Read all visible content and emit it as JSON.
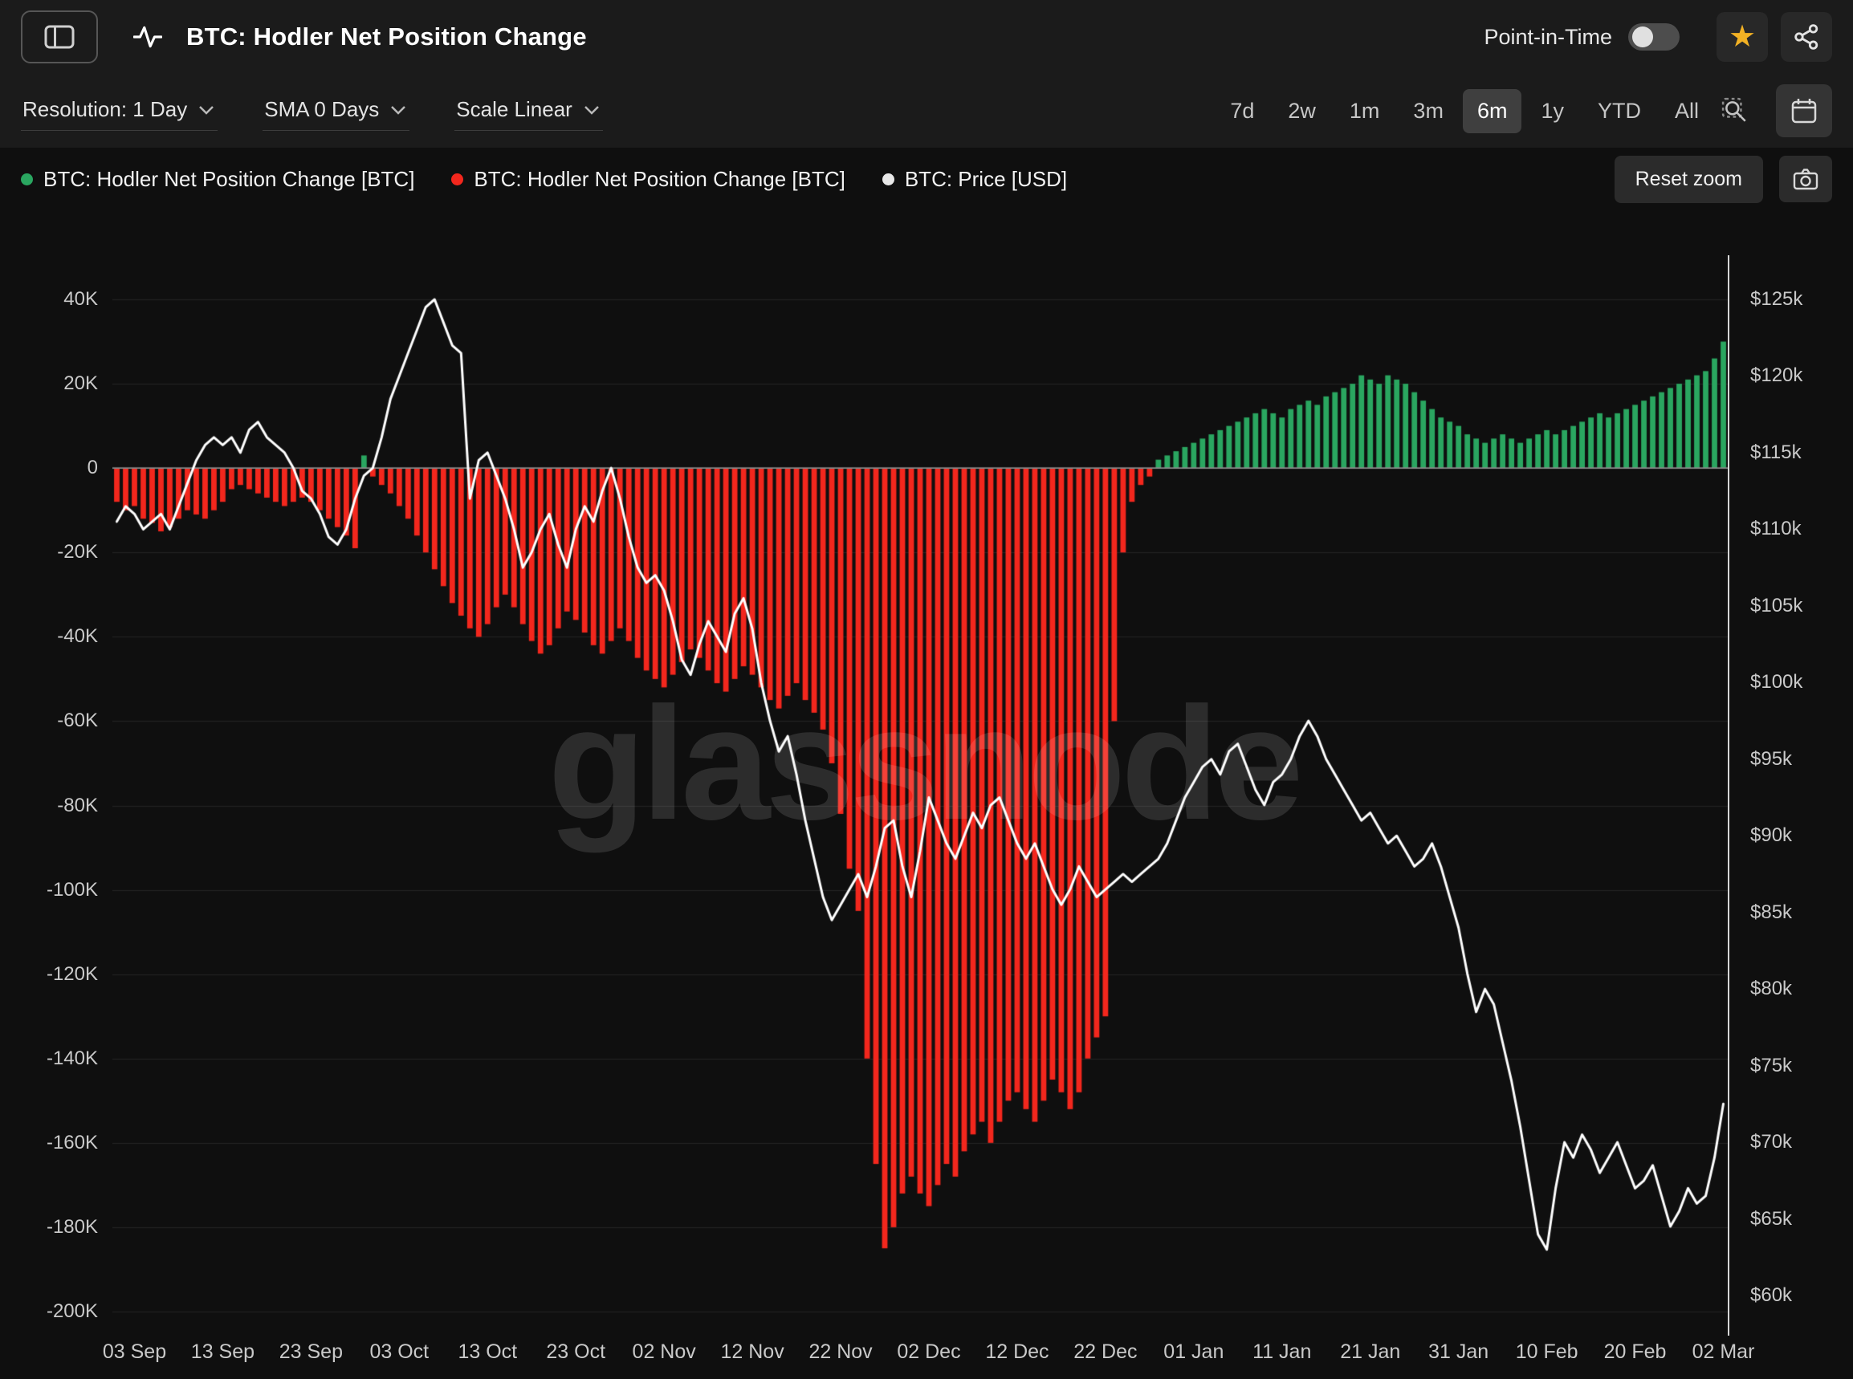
{
  "header": {
    "title": "BTC: Hodler Net Position Change",
    "point_in_time_label": "Point-in-Time",
    "point_in_time_enabled": false
  },
  "controls": {
    "dropdowns": [
      {
        "text": "Resolution: 1 Day"
      },
      {
        "text": "SMA 0 Days"
      },
      {
        "text": "Scale Linear"
      }
    ],
    "ranges": [
      "7d",
      "2w",
      "1m",
      "3m",
      "6m",
      "1y",
      "YTD",
      "All"
    ],
    "selected_range": "6m"
  },
  "legend": {
    "items": [
      {
        "label": "BTC: Hodler Net Position Change [BTC]",
        "color": "#2aa660"
      },
      {
        "label": "BTC: Hodler Net Position Change [BTC]",
        "color": "#f3271d"
      },
      {
        "label": "BTC: Price [USD]",
        "color": "#e8e8e8"
      }
    ],
    "reset_zoom_label": "Reset zoom"
  },
  "watermark": "glassnode",
  "colors": {
    "positive_bar": "#2aa660",
    "negative_bar": "#f3271d",
    "price_line": "#ffffff",
    "selected_range_bg": "#3f3f3f",
    "star": "#f2b124"
  },
  "chart_data": {
    "type": "combo",
    "x_unit": "daily values, 01 Sep through 02 Mar",
    "x_tick_labels": [
      "03 Sep",
      "13 Sep",
      "23 Sep",
      "03 Oct",
      "13 Oct",
      "23 Oct",
      "02 Nov",
      "12 Nov",
      "22 Nov",
      "02 Dec",
      "12 Dec",
      "22 Dec",
      "01 Jan",
      "11 Jan",
      "21 Jan",
      "31 Jan",
      "10 Feb",
      "20 Feb",
      "02 Mar"
    ],
    "x_tick_indices": [
      2,
      12,
      22,
      32,
      42,
      52,
      62,
      72,
      82,
      92,
      102,
      112,
      122,
      132,
      142,
      152,
      162,
      172,
      182
    ],
    "left_axis": {
      "tick_labels": [
        "40K",
        "20K",
        "0",
        "-20K",
        "-40K",
        "-60K",
        "-80K",
        "-100K",
        "-120K",
        "-140K",
        "-160K",
        "-180K",
        "-200K"
      ],
      "tick_values": [
        40,
        20,
        0,
        -20,
        -40,
        -60,
        -80,
        -100,
        -120,
        -140,
        -160,
        -180,
        -200
      ],
      "unit": "thousand BTC"
    },
    "right_axis": {
      "tick_labels": [
        "$125k",
        "$120k",
        "$115k",
        "$110k",
        "$105k",
        "$100k",
        "$95k",
        "$90k",
        "$85k",
        "$80k",
        "$75k",
        "$70k",
        "$65k",
        "$60k"
      ],
      "tick_values": [
        125,
        120,
        115,
        110,
        105,
        100,
        95,
        90,
        85,
        80,
        75,
        70,
        65,
        60
      ],
      "unit": "thousand USD"
    },
    "series": [
      {
        "name": "BTC: Hodler Net Position Change [BTC]",
        "type": "bar",
        "axis": "left",
        "unit": "K BTC",
        "positive_color": "#2aa660",
        "negative_color": "#f3271d",
        "values": [
          -8,
          -10,
          -9,
          -12,
          -13,
          -15,
          -14,
          -12,
          -10,
          -11,
          -12,
          -10,
          -8,
          -5,
          -4,
          -5,
          -6,
          -7,
          -8,
          -9,
          -8,
          -7,
          -8,
          -10,
          -12,
          -14,
          -16,
          -19,
          3,
          -2,
          -4,
          -6,
          -9,
          -12,
          -16,
          -20,
          -24,
          -28,
          -32,
          -35,
          -38,
          -40,
          -37,
          -33,
          -30,
          -33,
          -37,
          -41,
          -44,
          -42,
          -38,
          -34,
          -36,
          -39,
          -42,
          -44,
          -41,
          -38,
          -41,
          -45,
          -48,
          -50,
          -52,
          -49,
          -46,
          -43,
          -45,
          -48,
          -51,
          -53,
          -50,
          -47,
          -49,
          -52,
          -55,
          -57,
          -54,
          -51,
          -55,
          -58,
          -62,
          -70,
          -82,
          -95,
          -105,
          -140,
          -165,
          -185,
          -180,
          -172,
          -168,
          -172,
          -175,
          -170,
          -165,
          -168,
          -162,
          -158,
          -155,
          -160,
          -155,
          -150,
          -148,
          -152,
          -155,
          -150,
          -145,
          -148,
          -152,
          -148,
          -140,
          -135,
          -130,
          -60,
          -20,
          -8,
          -4,
          -2,
          2,
          3,
          4,
          5,
          6,
          7,
          8,
          9,
          10,
          11,
          12,
          13,
          14,
          13,
          12,
          14,
          15,
          16,
          15,
          17,
          18,
          19,
          20,
          22,
          21,
          20,
          22,
          21,
          20,
          18,
          16,
          14,
          12,
          11,
          10,
          8,
          7,
          6,
          7,
          8,
          7,
          6,
          7,
          8,
          9,
          8,
          9,
          10,
          11,
          12,
          13,
          12,
          13,
          14,
          15,
          16,
          17,
          18,
          19,
          20,
          21,
          22,
          23,
          26,
          30
        ]
      },
      {
        "name": "BTC: Price [USD]",
        "type": "line",
        "axis": "right",
        "unit": "k USD",
        "color": "#ffffff",
        "values": [
          110.5,
          111.5,
          111,
          110,
          110.5,
          111,
          110,
          111.5,
          113,
          114.5,
          115.5,
          116,
          115.5,
          116,
          115,
          116.5,
          117,
          116,
          115.5,
          115,
          114,
          112.5,
          112,
          111,
          109.5,
          109,
          110,
          112,
          113.5,
          114,
          116,
          118.5,
          120,
          121.5,
          123,
          124.5,
          125,
          123.5,
          122,
          121.5,
          112,
          114.5,
          115,
          113.5,
          112,
          110,
          107.5,
          108.5,
          110,
          111,
          109,
          107.5,
          110,
          111.5,
          110.5,
          112.5,
          114,
          112,
          109.5,
          107.5,
          106.5,
          107,
          106,
          104,
          101.5,
          100.5,
          102.5,
          104,
          103,
          102,
          104.5,
          105.5,
          103.5,
          100,
          97.5,
          95.5,
          96.5,
          94,
          91,
          88.5,
          86,
          84.5,
          85.5,
          86.5,
          87.5,
          86,
          88,
          90.5,
          91,
          88,
          86,
          89,
          92.5,
          91,
          89.5,
          88.5,
          90,
          91.5,
          90.5,
          92,
          92.5,
          91,
          89.5,
          88.5,
          89.5,
          88,
          86.5,
          85.5,
          86.5,
          88,
          87,
          86,
          86.5,
          87,
          87.5,
          87,
          87.5,
          88,
          88.5,
          89.5,
          91,
          92.5,
          93.5,
          94.5,
          95,
          94,
          95.5,
          96,
          94.5,
          93,
          92,
          93.5,
          94,
          95,
          96.5,
          97.5,
          96.5,
          95,
          94,
          93,
          92,
          91,
          91.5,
          90.5,
          89.5,
          90,
          89,
          88,
          88.5,
          89.5,
          88,
          86,
          84,
          81,
          78.5,
          80,
          79,
          76.5,
          74,
          71,
          67.5,
          64,
          63,
          67,
          70,
          69,
          70.5,
          69.5,
          68,
          69,
          70,
          68.5,
          67,
          67.5,
          68.5,
          66.5,
          64.5,
          65.5,
          67,
          66,
          66.5,
          69,
          72.5
        ]
      }
    ]
  }
}
